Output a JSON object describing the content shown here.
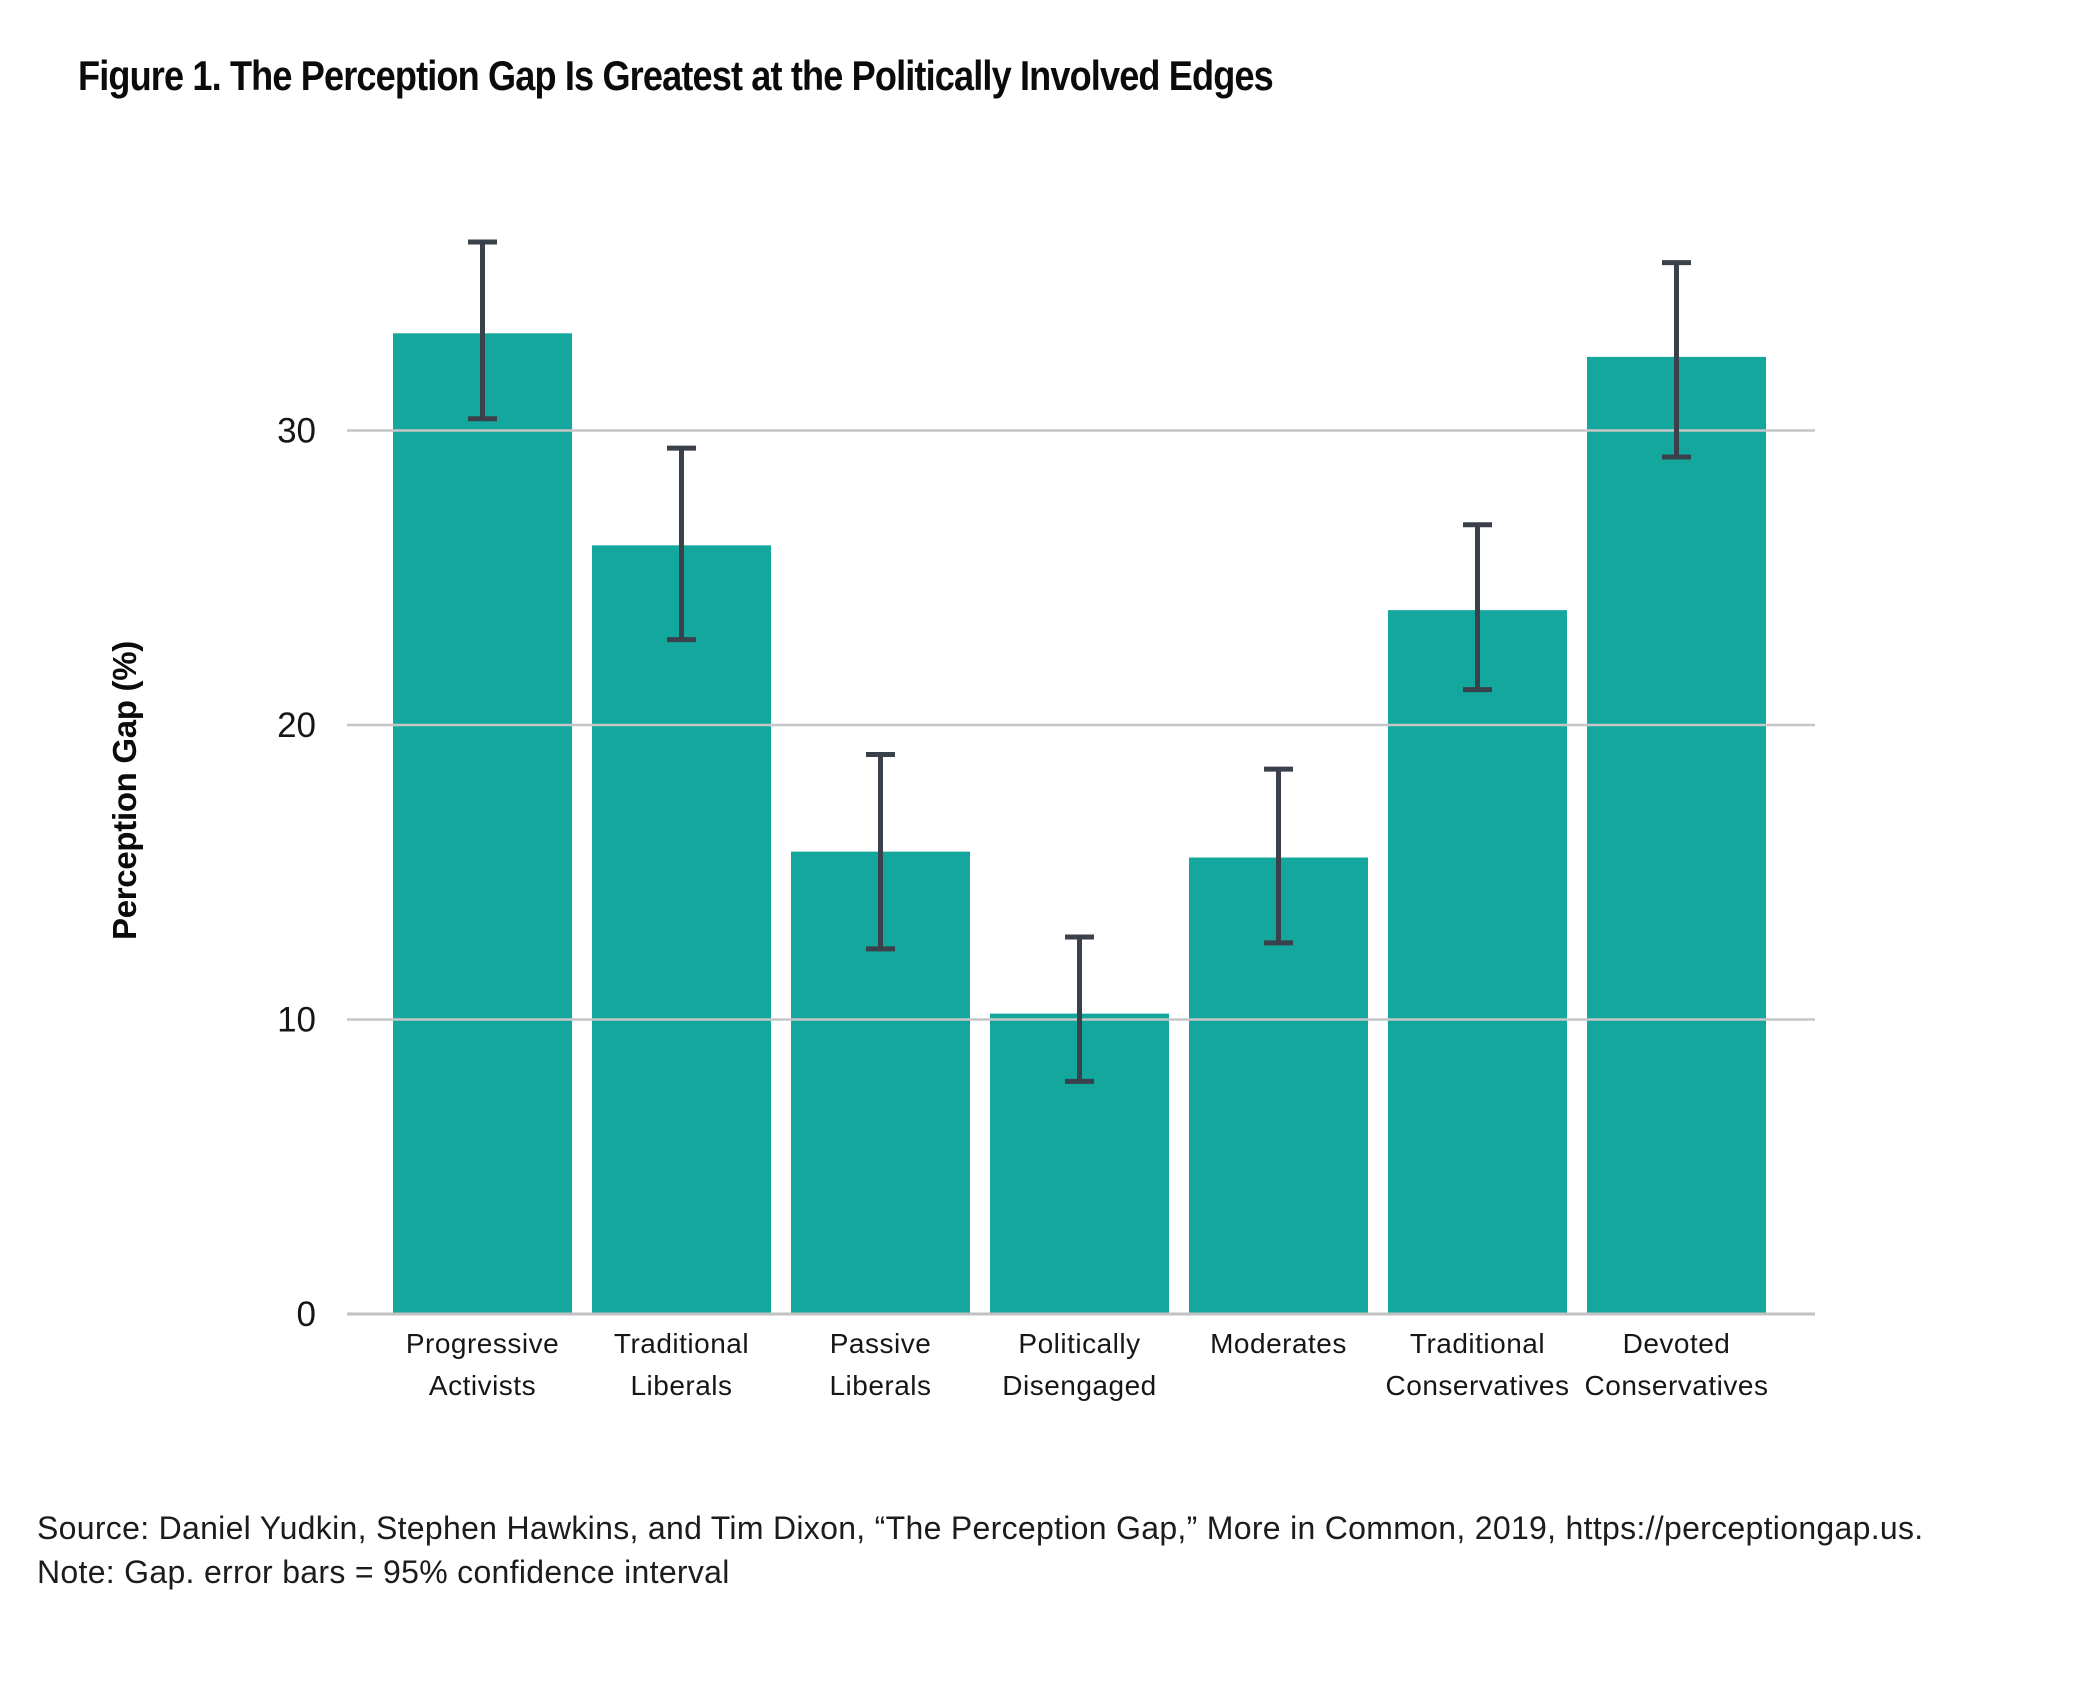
{
  "figure": {
    "source": "Source: Daniel Yudkin, Stephen Hawkins, and Tim Dixon, “The Perception Gap,” More in Common, 2019, https://perceptiongap.us.",
    "note": "Note: Gap. error bars = 95% confidence interval"
  },
  "chart_data": {
    "type": "bar",
    "title": "Figure 1. The Perception Gap Is Greatest at the Politically Involved Edges",
    "xlabel": "",
    "ylabel": "Perception Gap (%)",
    "categories": [
      "Progressive Activists",
      "Traditional Liberals",
      "Passive Liberals",
      "Politically Disengaged",
      "Moderates",
      "Traditional Conservatives",
      "Devoted Conservatives"
    ],
    "category_lines": [
      [
        "Progressive",
        "Activists"
      ],
      [
        "Traditional",
        "Liberals"
      ],
      [
        "Passive",
        "Liberals"
      ],
      [
        "Politically",
        "Disengaged"
      ],
      [
        "Moderates"
      ],
      [
        "Traditional",
        "Conservatives"
      ],
      [
        "Devoted",
        "Conservatives"
      ]
    ],
    "values": [
      33.3,
      26.1,
      15.7,
      10.2,
      15.5,
      23.9,
      32.5
    ],
    "error_high": [
      36.4,
      29.4,
      19.0,
      12.8,
      18.5,
      26.8,
      35.7
    ],
    "error_low": [
      30.4,
      22.9,
      12.4,
      7.9,
      12.6,
      21.2,
      29.1
    ],
    "error_note": "95% confidence interval",
    "yticks": [
      0,
      10,
      20,
      30
    ],
    "ylim": [
      0,
      38
    ],
    "grid": true,
    "legend": false,
    "bar_color": "#14A79E",
    "error_color": "#3A414B",
    "grid_color": "#C6C6C6",
    "axis_color": "#C2C2C2"
  }
}
